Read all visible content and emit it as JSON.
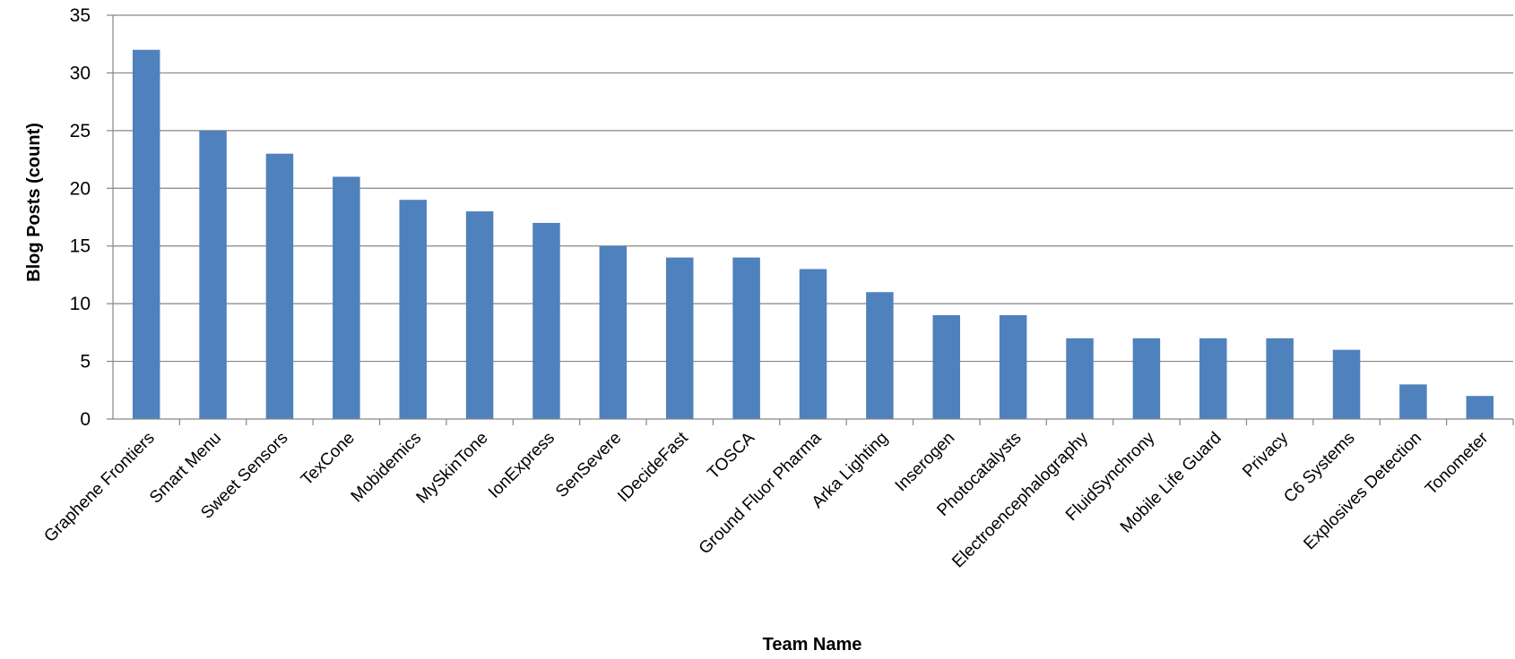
{
  "chart_data": {
    "type": "bar",
    "title": "",
    "xlabel": "Team Name",
    "ylabel": "Blog Posts (count)",
    "ylim": [
      0,
      35
    ],
    "yticks": [
      0,
      5,
      10,
      15,
      20,
      25,
      30,
      35
    ],
    "grid": true,
    "legend": "none",
    "bar_color": "#4F81BD",
    "categories": [
      "Graphene Frontiers",
      "Smart Menu",
      "Sweet Sensors",
      "TexCone",
      "Mobidemics",
      "MySkinTone",
      "IonExpress",
      "SenSevere",
      "IDecideFast",
      "TOSCA",
      "Ground Fluor Pharma",
      "Arka Lighting",
      "Inserogen",
      "Photocatalysts",
      "Electroencephalography",
      "FluidSynchrony",
      "Mobile Life Guard",
      "Privacy",
      "C6 Systems",
      "Explosives Detection",
      "Tonometer"
    ],
    "values": [
      32,
      25,
      23,
      21,
      19,
      18,
      17,
      15,
      14,
      14,
      13,
      11,
      9,
      9,
      7,
      7,
      7,
      7,
      6,
      3,
      2
    ]
  }
}
